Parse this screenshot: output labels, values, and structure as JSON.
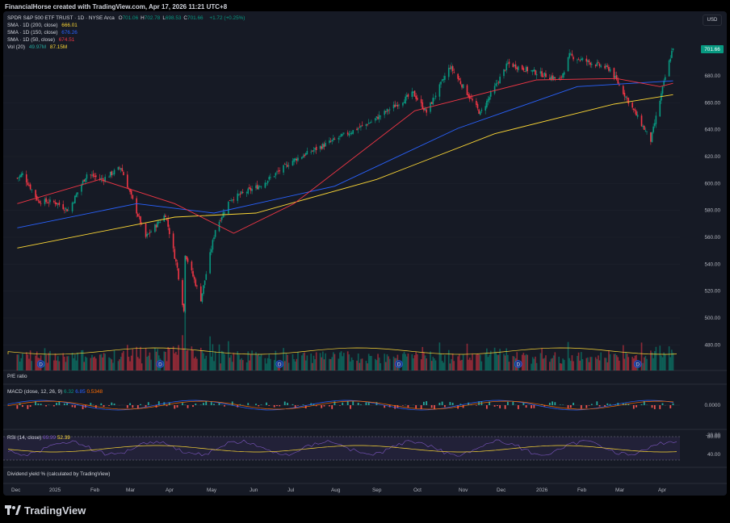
{
  "header": {
    "title": "FinancialHorse created with TradingView.com, Apr 17, 2026 11:21 UTC+8"
  },
  "legend": {
    "symbol": "SPDR S&P 500 ETF TRUST · 1D · NYSE Arca",
    "ohlc": [
      {
        "k": "O",
        "v": "701.06"
      },
      {
        "k": "H",
        "v": "702.78"
      },
      {
        "k": "L",
        "v": "698.53"
      },
      {
        "k": "C",
        "v": "701.66"
      }
    ],
    "change": "+1.72 (+0.25%)",
    "sma200_label": "SMA · 1D (200, close)",
    "sma200_value": "666.01",
    "sma150_label": "SMA · 1D (150, close)",
    "sma150_value": "676.26",
    "sma50_label": "SMA · 1D (50, close)",
    "sma50_value": "674.51",
    "vol_label": "Vol (20)",
    "vol_value1": "49.97M",
    "vol_value2": "87.15M"
  },
  "currency_button": "USD",
  "last_price": "701.66",
  "price_ticks": [
    "680.00",
    "660.00",
    "640.00",
    "620.00",
    "600.00",
    "580.00",
    "560.00",
    "540.00",
    "520.00",
    "500.00",
    "480.00"
  ],
  "indicators": {
    "pe": "P/E ratio",
    "macd_label": "MACD (close, 12, 26, 9)",
    "macd_v1": "6.32",
    "macd_v2": "6.85",
    "macd_v3": "0.5348",
    "macd_ticks": [
      "0.0000"
    ],
    "rsi_label": "RSI (14, close)",
    "rsi_v1": "69.99",
    "rsi_v2": "52.39",
    "rsi_ticks": [
      "80.00",
      "40.00"
    ],
    "rsi_cut_tick": "-20.00",
    "div": "Dividend yield % (calculated by TradingView)"
  },
  "time_axis": [
    "Dec",
    "2025",
    "Feb",
    "Mar",
    "Apr",
    "May",
    "Jun",
    "Jul",
    "Aug",
    "Sep",
    "Oct",
    "Nov",
    "Dec",
    "2026",
    "Feb",
    "Mar",
    "Apr"
  ],
  "dividend_marker": "D",
  "footer": {
    "brand": "TradingView"
  },
  "colors": {
    "up": "#089981",
    "down": "#f23645",
    "sma200": "#fdd835",
    "sma150": "#2962ff",
    "sma50": "#f23645",
    "vol_ma": "#fdd835",
    "rsi": "#7e57c2"
  },
  "chart_data": {
    "type": "candlestick",
    "title": "SPDR S&P 500 ETF TRUST · 1D · NYSE Arca",
    "y_range": [
      470,
      710
    ],
    "price_path": [
      [
        "2024-12-02",
        604
      ],
      [
        "2024-12-06",
        607
      ],
      [
        "2024-12-18",
        587
      ],
      [
        "2024-12-31",
        586
      ],
      [
        "2025-01-10",
        580
      ],
      [
        "2025-01-24",
        607
      ],
      [
        "2025-02-05",
        603
      ],
      [
        "2025-02-19",
        612
      ],
      [
        "2025-03-10",
        560
      ],
      [
        "2025-03-25",
        577
      ],
      [
        "2025-04-03",
        537
      ],
      [
        "2025-04-08",
        505
      ],
      [
        "2025-04-09",
        548
      ],
      [
        "2025-04-21",
        514
      ],
      [
        "2025-05-02",
        566
      ],
      [
        "2025-05-13",
        588
      ],
      [
        "2025-06-06",
        599
      ],
      [
        "2025-06-30",
        617
      ],
      [
        "2025-07-31",
        632
      ],
      [
        "2025-08-29",
        646
      ],
      [
        "2025-09-30",
        667
      ],
      [
        "2025-10-10",
        653
      ],
      [
        "2025-10-28",
        687
      ],
      [
        "2025-11-20",
        652
      ],
      [
        "2025-12-11",
        689
      ],
      [
        "2026-01-20",
        677
      ],
      [
        "2026-01-27",
        695
      ],
      [
        "2026-02-27",
        685
      ],
      [
        "2026-03-30",
        632
      ],
      [
        "2026-04-10",
        679
      ],
      [
        "2026-04-16",
        701.66
      ]
    ],
    "sma": [
      {
        "name": "SMA 200",
        "points": [
          [
            "2024-12-02",
            552
          ],
          [
            "2025-04-01",
            575
          ],
          [
            "2025-06-02",
            578
          ],
          [
            "2025-09-02",
            603
          ],
          [
            "2025-12-01",
            637
          ],
          [
            "2026-03-02",
            659
          ],
          [
            "2026-04-16",
            666.01
          ]
        ]
      },
      {
        "name": "SMA 150",
        "points": [
          [
            "2024-12-02",
            567
          ],
          [
            "2025-03-03",
            585
          ],
          [
            "2025-05-01",
            578
          ],
          [
            "2025-08-01",
            598
          ],
          [
            "2025-11-03",
            641
          ],
          [
            "2026-02-02",
            672
          ],
          [
            "2026-04-16",
            676.26
          ]
        ]
      },
      {
        "name": "SMA 50",
        "points": [
          [
            "2024-12-02",
            585
          ],
          [
            "2025-02-03",
            603
          ],
          [
            "2025-04-01",
            585
          ],
          [
            "2025-05-16",
            563
          ],
          [
            "2025-07-01",
            585
          ],
          [
            "2025-10-01",
            654
          ],
          [
            "2026-01-02",
            677
          ],
          [
            "2026-03-04",
            678
          ],
          [
            "2026-04-06",
            672
          ],
          [
            "2026-04-16",
            674.51
          ]
        ]
      }
    ]
  }
}
